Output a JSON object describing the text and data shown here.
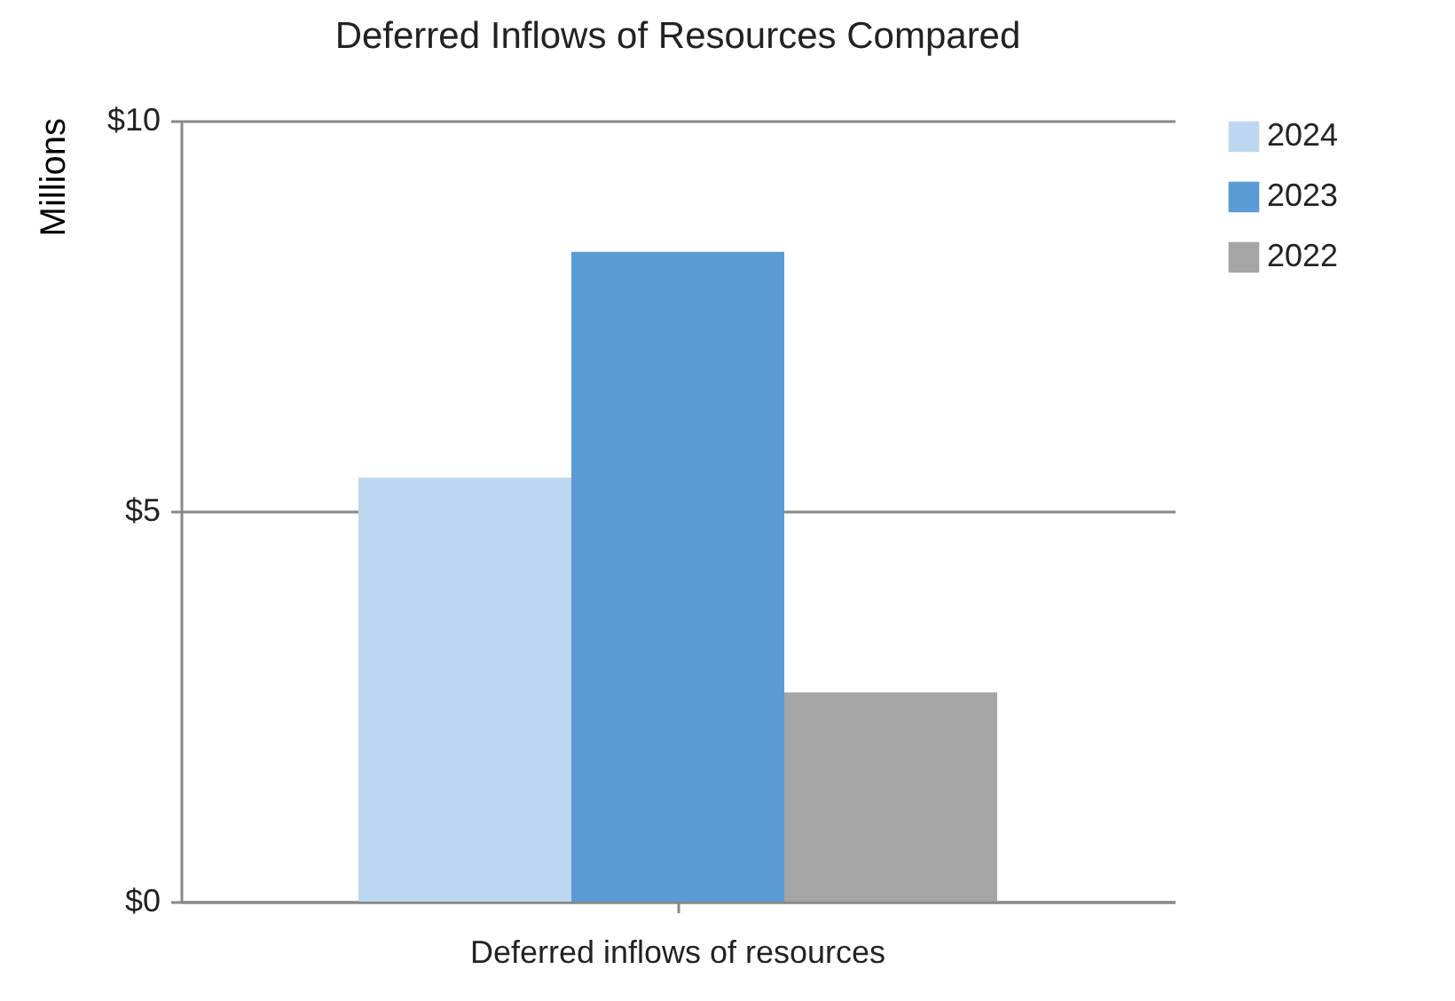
{
  "chart_data": {
    "type": "bar",
    "title": "Deferred Inflows of Resources Compared",
    "ylabel": "Millions",
    "categories": [
      "Deferred inflows of resources"
    ],
    "series": [
      {
        "name": "2024",
        "color": "#bdd7ee",
        "values": [
          5.43
        ]
      },
      {
        "name": "2023",
        "color": "#5b9bd5",
        "values": [
          8.32
        ]
      },
      {
        "name": "2022",
        "color": "#a5a5a5",
        "values": [
          2.68
        ]
      }
    ],
    "ylim": [
      0,
      10
    ],
    "yticks": [
      {
        "value": 0,
        "label": "$0"
      },
      {
        "value": 5,
        "label": "$5"
      },
      {
        "value": 10,
        "label": "$10"
      }
    ],
    "grid": "y",
    "legend": "right"
  }
}
